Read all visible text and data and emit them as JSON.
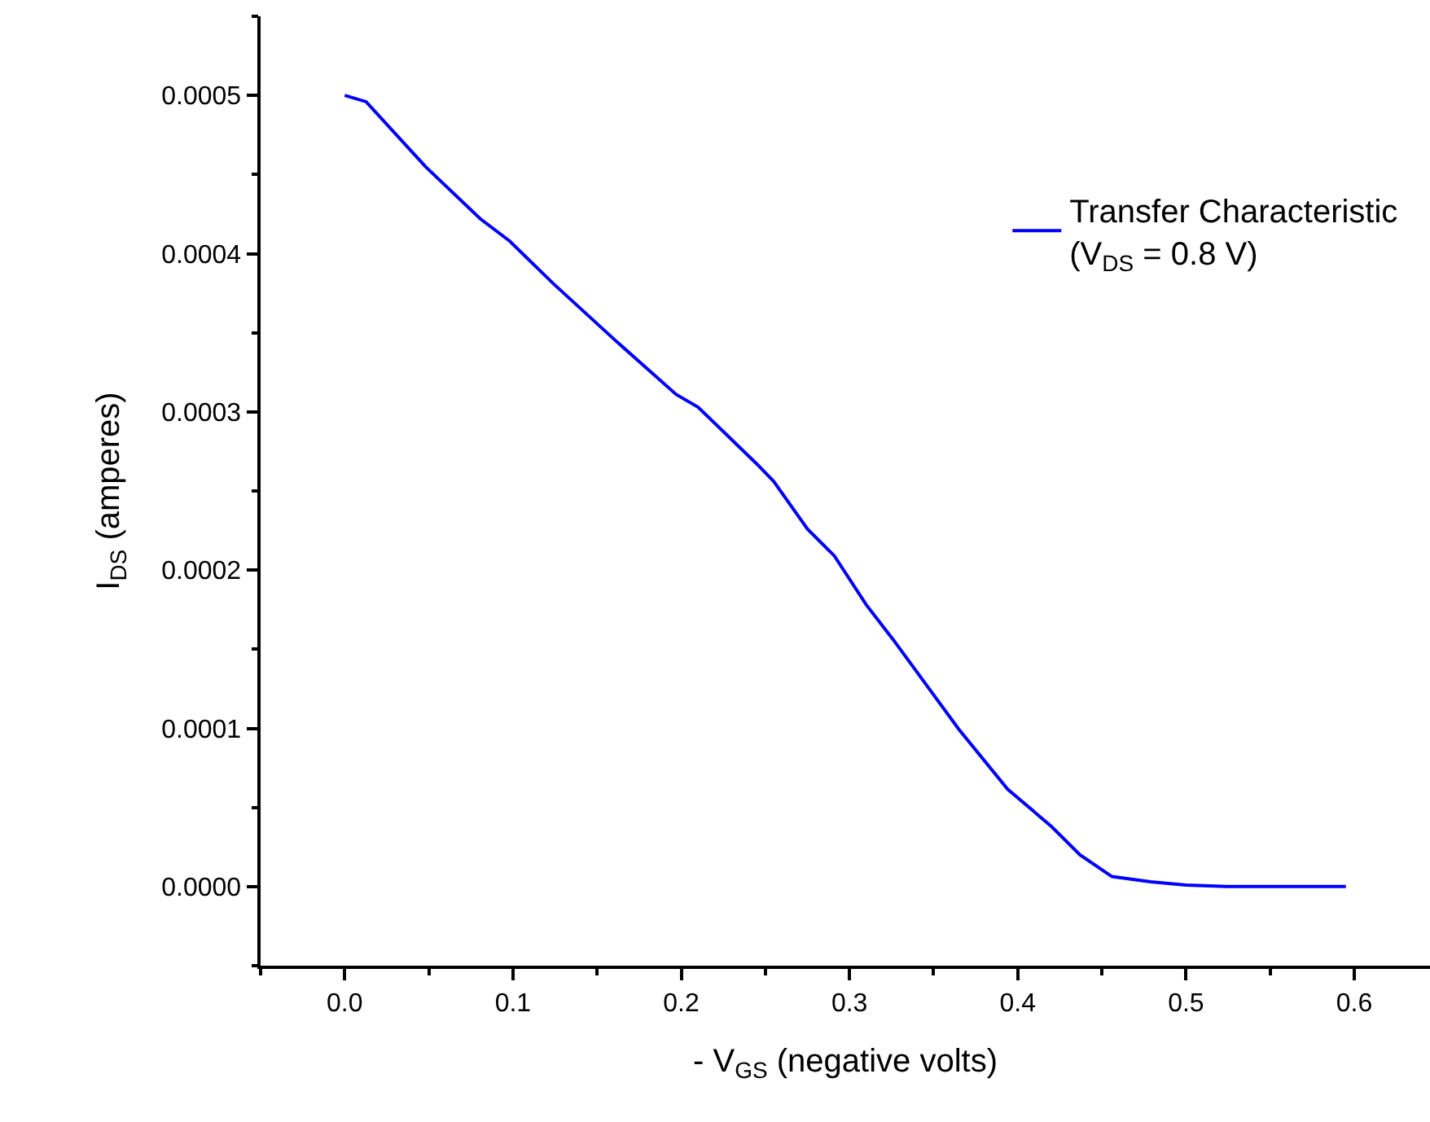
{
  "chart_data": {
    "type": "line",
    "xlabel": "- V$_{GS}$ (negative volts)",
    "ylabel": "I$_{DS}$ (amperes)",
    "x": [
      0,
      0.0127,
      0.048,
      0.0806,
      0.098,
      0.124,
      0.161,
      0.197,
      0.21,
      0.245,
      0.255,
      0.275,
      0.291,
      0.31,
      0.326,
      0.365,
      0.394,
      0.42,
      0.437,
      0.456,
      0.479,
      0.5,
      0.524,
      0.595
    ],
    "series": [
      {
        "name": "Transfer Characteristic\n(V$_{DS}$ = 0.8 V)",
        "color": "#0000ff",
        "values": [
          0.0005,
          0.000496,
          0.000455,
          0.000422,
          0.000408,
          0.000381,
          0.000345,
          0.000311,
          0.000303,
          0.000267,
          0.000256,
          0.000226,
          0.000209,
          0.000178,
          0.000156,
          9.94e-05,
          6.15e-05,
          3.8e-05,
          2e-05,
          6.3e-06,
          3e-06,
          1e-06,
          0,
          0
        ]
      }
    ],
    "xlim": [
      -0.05,
      0.645
    ],
    "ylim": [
      -5e-05,
      0.00055
    ],
    "xticks": [
      {
        "value": 0,
        "label": "0.0"
      },
      0.1,
      0.2,
      0.3,
      0.4,
      0.5,
      0.6
    ],
    "yticks": [
      {
        "value": 0,
        "label": "0.0000"
      },
      {
        "value": 0.0001,
        "label": "0.0001"
      },
      {
        "value": 0.0002,
        "label": "0.0002"
      },
      {
        "value": 0.0003,
        "label": "0.0003"
      },
      {
        "value": 0.0004,
        "label": "0.0004"
      },
      {
        "value": 0.0005,
        "label": "0.0005"
      }
    ],
    "grid": false,
    "legend": "top right",
    "marker": "none",
    "line_style": "solid"
  }
}
